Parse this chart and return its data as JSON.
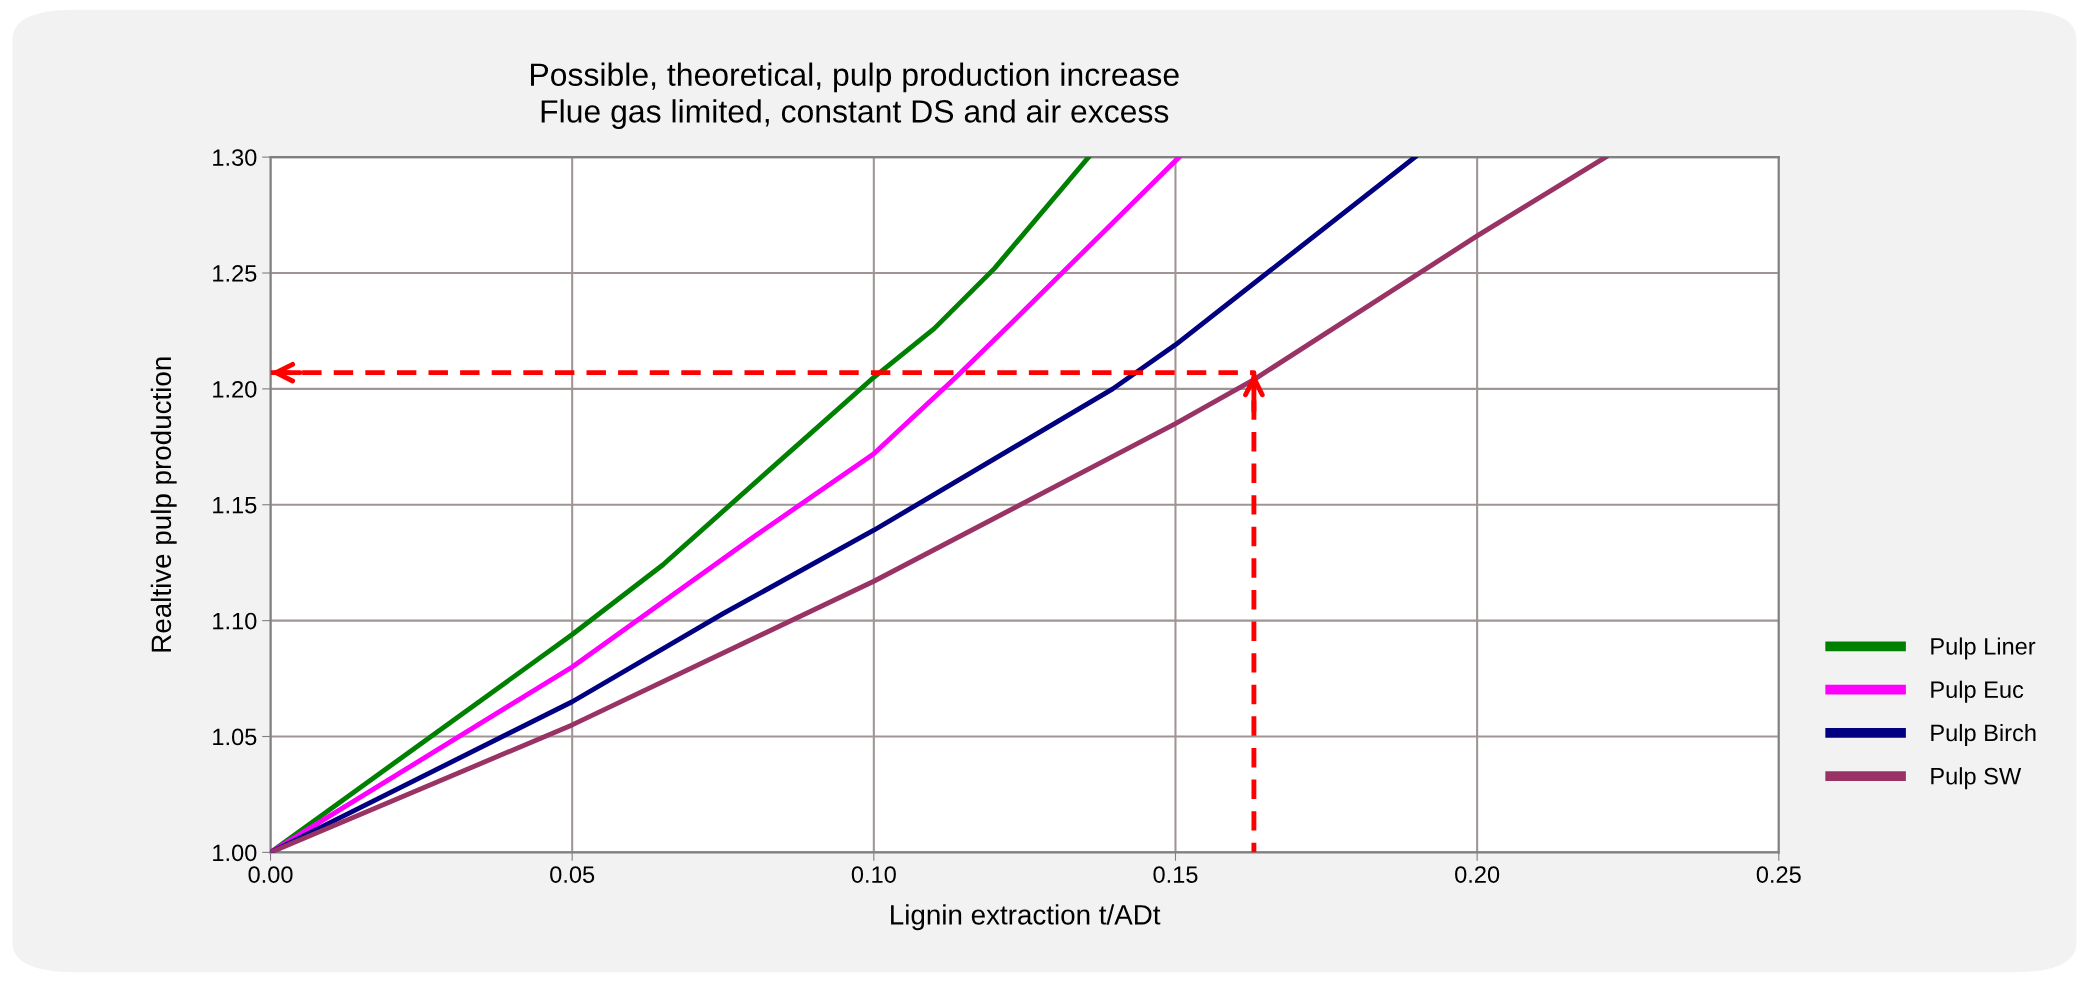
{
  "chart_data": {
    "type": "line",
    "title": "Possible, theoretical, pulp production increase\nFlue gas limited, constant DS and air excess",
    "xlabel": "Lignin extraction t/ADt",
    "ylabel": "Realtive pulp production",
    "xlim": [
      0,
      0.25
    ],
    "xticks": [
      {
        "value": 0,
        "label": "0.00"
      },
      {
        "value": 0.05,
        "label": "0.05"
      },
      {
        "value": 0.1,
        "label": "0.10"
      },
      {
        "value": 0.15,
        "label": "0.15"
      },
      {
        "value": 0.2,
        "label": "0.20"
      },
      {
        "value": 0.25,
        "label": "0.25"
      }
    ],
    "ylim": [
      1.0,
      1.3
    ],
    "yticks": [
      {
        "value": 1.0,
        "label": "1.00"
      },
      {
        "value": 1.05,
        "label": "1.05"
      },
      {
        "value": 1.1,
        "label": "1.10"
      },
      {
        "value": 1.15,
        "label": "1.15"
      },
      {
        "value": 1.2,
        "label": "1.20"
      },
      {
        "value": 1.25,
        "label": "1.25"
      },
      {
        "value": 1.3,
        "label": "1.30"
      }
    ],
    "grid": true,
    "legend": "right",
    "marker": "none",
    "line_style": "solid",
    "series": [
      {
        "name": "Pulp Liner",
        "color": "#008000",
        "x": [
          0,
          0.05,
          0.065,
          0.087,
          0.1,
          0.11,
          0.12,
          0.1356
        ],
        "values": [
          1.0,
          1.094,
          1.124,
          1.175,
          1.205,
          1.226,
          1.252,
          1.3
        ]
      },
      {
        "name": "Pulp Euc",
        "color": "#ff00ff",
        "x": [
          0,
          0.05,
          0.08,
          0.1,
          0.114,
          0.125,
          0.1506
        ],
        "values": [
          1.0,
          1.08,
          1.136,
          1.172,
          1.206,
          1.234,
          1.3
        ]
      },
      {
        "name": "Pulp Birch",
        "color": "#000080",
        "x": [
          0,
          0.05,
          0.075,
          0.1,
          0.1396,
          0.15,
          0.1897
        ],
        "values": [
          1.0,
          1.065,
          1.103,
          1.139,
          1.2,
          1.219,
          1.3
        ]
      },
      {
        "name": "Pulp SW",
        "color": "#993366",
        "x": [
          0,
          0.05,
          0.1,
          0.15,
          0.163,
          0.2,
          0.2213
        ],
        "values": [
          1.0,
          1.055,
          1.117,
          1.185,
          1.204,
          1.266,
          1.3
        ]
      },
      {
        "color": "#ff0000",
        "line_style": "dashed",
        "x": [
          0,
          0.163,
          0.163
        ],
        "values": [
          1.207,
          1.207,
          1.0
        ]
      }
    ]
  }
}
